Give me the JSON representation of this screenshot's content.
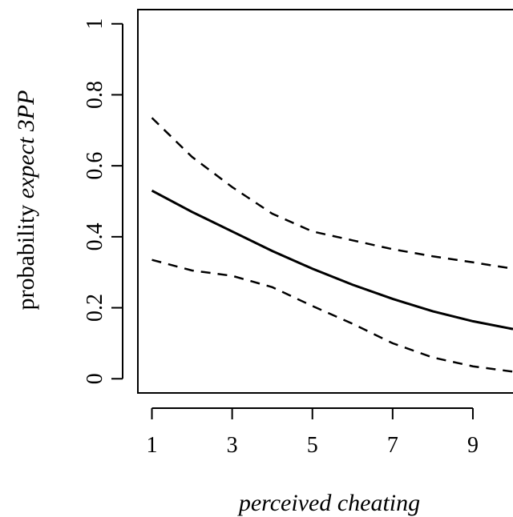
{
  "chart_data": {
    "type": "line",
    "title": "",
    "xlabel": "perceived cheating",
    "ylabel_prefix": "probability ",
    "ylabel_italic": "expect 3PP",
    "x_ticks": [
      1,
      3,
      5,
      7,
      9
    ],
    "x_tick_labels": [
      "1",
      "3",
      "5",
      "7",
      "9"
    ],
    "y_ticks": [
      0,
      0.2,
      0.4,
      0.6,
      0.8,
      1
    ],
    "y_tick_labels": [
      "0",
      "0.2",
      "0.4",
      "0.6",
      "0.8",
      "1"
    ],
    "xlim": [
      0.65,
      10
    ],
    "ylim": [
      -0.04,
      1.04
    ],
    "grid": false,
    "legend": "none",
    "series": [
      {
        "role": "estimate",
        "style": "solid",
        "color": "#000000",
        "x": [
          1,
          2,
          3,
          4,
          5,
          6,
          7,
          8,
          9,
          10
        ],
        "y": [
          0.53,
          0.47,
          0.415,
          0.36,
          0.31,
          0.265,
          0.225,
          0.19,
          0.162,
          0.14
        ]
      },
      {
        "role": "upper",
        "style": "dashed",
        "color": "#000000",
        "x": [
          1,
          2,
          3,
          4,
          5,
          6,
          7,
          8,
          9,
          10
        ],
        "y": [
          0.735,
          0.625,
          0.54,
          0.465,
          0.415,
          0.39,
          0.365,
          0.345,
          0.328,
          0.31
        ]
      },
      {
        "role": "lower",
        "style": "dashed",
        "color": "#000000",
        "x": [
          1,
          2,
          3,
          4,
          5,
          6,
          7,
          8,
          9,
          10
        ],
        "y": [
          0.335,
          0.305,
          0.29,
          0.258,
          0.205,
          0.155,
          0.1,
          0.06,
          0.035,
          0.02
        ]
      }
    ]
  }
}
